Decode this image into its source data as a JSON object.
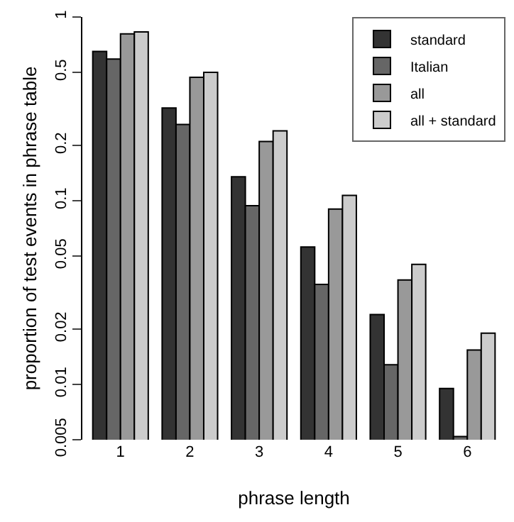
{
  "chart_data": {
    "type": "bar",
    "xlabel": "phrase length",
    "ylabel": "proportion of test events in phrase table",
    "categories": [
      "1",
      "2",
      "3",
      "4",
      "5",
      "6"
    ],
    "series": [
      {
        "name": "standard",
        "color": "#333333",
        "values": [
          0.65,
          0.32,
          0.135,
          0.056,
          0.024,
          0.0095
        ]
      },
      {
        "name": "Italian",
        "color": "#666666",
        "values": [
          0.59,
          0.26,
          0.094,
          0.035,
          0.0128,
          0.0052
        ]
      },
      {
        "name": "all",
        "color": "#999999",
        "values": [
          0.81,
          0.47,
          0.21,
          0.09,
          0.037,
          0.0154
        ]
      },
      {
        "name": "all + standard",
        "color": "#cccccc",
        "values": [
          0.83,
          0.5,
          0.24,
          0.107,
          0.045,
          0.019
        ]
      }
    ],
    "log": "y",
    "ylim": [
      0.005,
      1
    ],
    "yticks": [
      0.005,
      0.01,
      0.02,
      0.05,
      0.1,
      0.2,
      0.5,
      1
    ],
    "legend": "top right"
  }
}
